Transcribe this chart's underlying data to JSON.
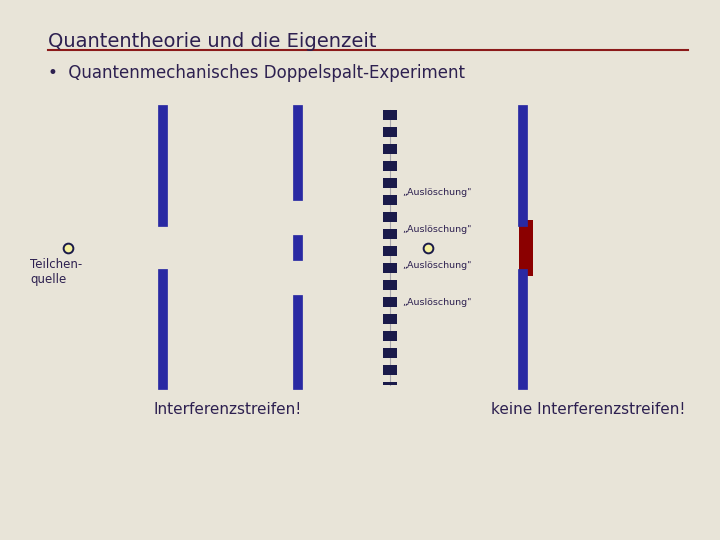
{
  "bg_color": "#e8e4d8",
  "title": "Quantentheorie und die Eigenzeit",
  "title_color": "#2d2050",
  "title_fontsize": 14,
  "bullet_text": "Quantenmechanisches Doppelspalt-Experiment",
  "bullet_fontsize": 12,
  "bullet_color": "#2d2050",
  "hr_color": "#8b1a1a",
  "wall_color": "#2929a3",
  "screen_color": "#1a1a4a",
  "ausloeschung_color": "#2d2050",
  "detector_color": "#8b0000",
  "source_face": "#f5f0a0",
  "source_edge": "#1a1a4a",
  "label_color": "#2d2050",
  "bottom_text_color": "#2d2050",
  "ausloes_label": "„Auslöschung\"",
  "left_bottom_text": "Interferenzstreifen!",
  "right_bottom_text": "keine Interferenzstreifen!",
  "source_label": "Teilchen-\nquelle"
}
